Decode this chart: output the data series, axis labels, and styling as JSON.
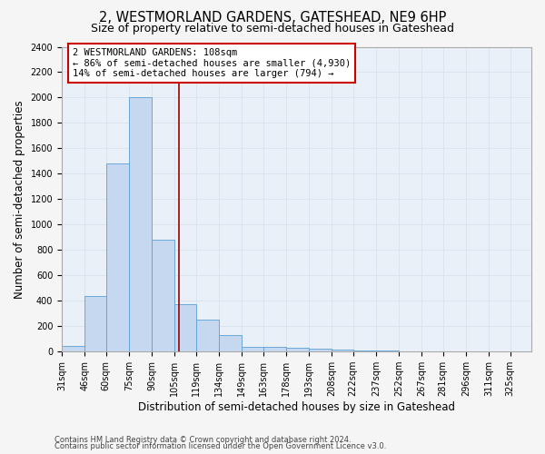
{
  "title": "2, WESTMORLAND GARDENS, GATESHEAD, NE9 6HP",
  "subtitle": "Size of property relative to semi-detached houses in Gateshead",
  "xlabel": "Distribution of semi-detached houses by size in Gateshead",
  "ylabel": "Number of semi-detached properties",
  "bin_labels": [
    "31sqm",
    "46sqm",
    "60sqm",
    "75sqm",
    "90sqm",
    "105sqm",
    "119sqm",
    "134sqm",
    "149sqm",
    "163sqm",
    "178sqm",
    "193sqm",
    "208sqm",
    "222sqm",
    "237sqm",
    "252sqm",
    "267sqm",
    "281sqm",
    "296sqm",
    "311sqm",
    "325sqm"
  ],
  "bin_edges": [
    31,
    46,
    60,
    75,
    90,
    105,
    119,
    134,
    149,
    163,
    178,
    193,
    208,
    222,
    237,
    252,
    267,
    281,
    296,
    311,
    325
  ],
  "bar_heights": [
    45,
    440,
    1480,
    2000,
    880,
    375,
    255,
    130,
    40,
    40,
    30,
    20,
    18,
    12,
    8,
    5,
    3,
    2,
    1,
    1
  ],
  "bar_color": "#c5d8ef",
  "bar_edge_color": "#5a9fd4",
  "property_size": 108,
  "vline_color": "#990000",
  "annotation_text": "2 WESTMORLAND GARDENS: 108sqm\n← 86% of semi-detached houses are smaller (4,930)\n14% of semi-detached houses are larger (794) →",
  "annotation_box_color": "#ffffff",
  "annotation_border_color": "#cc0000",
  "ylim": [
    0,
    2400
  ],
  "yticks": [
    0,
    200,
    400,
    600,
    800,
    1000,
    1200,
    1400,
    1600,
    1800,
    2000,
    2200,
    2400
  ],
  "footer1": "Contains HM Land Registry data © Crown copyright and database right 2024.",
  "footer2": "Contains public sector information licensed under the Open Government Licence v3.0.",
  "bg_color": "#eaf0f8",
  "grid_color": "#d8e4f0",
  "title_fontsize": 10.5,
  "subtitle_fontsize": 9,
  "label_fontsize": 8.5,
  "annotation_fontsize": 7.5,
  "tick_fontsize": 7
}
